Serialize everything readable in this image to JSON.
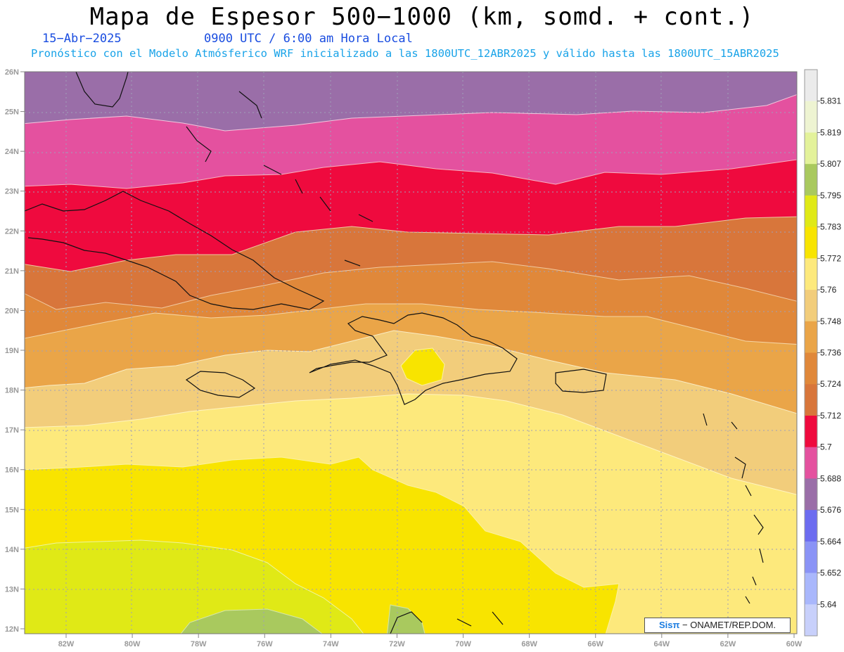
{
  "header": {
    "title": "Mapa de Espesor 500−1000 (km, somd. + cont.)",
    "date": "15−Abr−2025",
    "time": "0900 UTC / 6:00 am Hora Local",
    "description": "Pronóstico con el Modelo Atmósferico WRF inicializado a las 1800UTC_12ABR2025 y válido hasta las  1800UTC_15ABR2025"
  },
  "map": {
    "lat_ticks": [
      "12N",
      "13N",
      "14N",
      "15N",
      "16N",
      "17N",
      "18N",
      "19N",
      "20N",
      "21N",
      "22N",
      "23N",
      "24N",
      "25N",
      "26N"
    ],
    "lon_ticks": [
      "82W",
      "80W",
      "78W",
      "76W",
      "74W",
      "72W",
      "70W",
      "68W",
      "66W",
      "64W",
      "62W",
      "60W"
    ]
  },
  "colorbar": {
    "levels": [
      "5.831",
      "5.819",
      "5.807",
      "5.795",
      "5.783",
      "5.772",
      "5.76",
      "5.748",
      "5.736",
      "5.724",
      "5.712",
      "5.7",
      "5.688",
      "5.676",
      "5.664",
      "5.652",
      "5.64"
    ],
    "colors": [
      "#ebebeb",
      "#eef4d2",
      "#e3f29a",
      "#a9c95e",
      "#e0e916",
      "#f8e400",
      "#fde97c",
      "#f2cd7b",
      "#eaa548",
      "#e0883a",
      "#d8763b",
      "#ef0a3e",
      "#e4519f",
      "#9a6ea8",
      "#6c6cf0",
      "#8a93f6",
      "#a9b7fc",
      "#c8d0fb"
    ]
  },
  "credit": {
    "brand": "Sisπ",
    "text": " − ONAMET/REP.DOM."
  }
}
